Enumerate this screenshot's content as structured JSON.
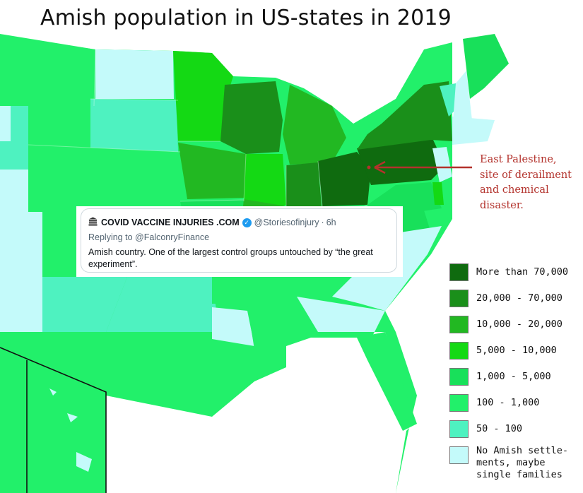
{
  "title": "Amish population in US-states in 2019",
  "annotation": {
    "lines": [
      "East Palestine,",
      "site of derailment",
      "and chemical",
      "disaster."
    ],
    "color": "#b3322c"
  },
  "tweet": {
    "account_name": "COVID VACCINE INJURIES .COM",
    "handle": "@Storiesofinjury",
    "age": "6h",
    "replying_prefix": "Replying to",
    "replying_to": "@FalconryFinance",
    "text": "Amish country. One of the largest control groups untouched by “the great experiment”.",
    "icons": [
      "building-icon",
      "verified-badge-icon"
    ]
  },
  "legend": [
    {
      "label": "More than 70,000",
      "color": "#0f6b0f"
    },
    {
      "label": "20,000 - 70,000",
      "color": "#1a8f1a"
    },
    {
      "label": "10,000 - 20,000",
      "color": "#22b822"
    },
    {
      "label": "5,000 - 10,000",
      "color": "#14d914"
    },
    {
      "label": "1,000 - 5,000",
      "color": "#18e05a"
    },
    {
      "label": "100 - 1,000",
      "color": "#22f06a"
    },
    {
      "label": "50 - 100",
      "color": "#4ef2c0"
    },
    {
      "label": "No Amish settle-\nments, maybe\nsingle families",
      "color": "#c4fafa"
    }
  ],
  "state_classes": {
    "Pennsylvania": "More than 70,000",
    "Ohio": "More than 70,000",
    "Indiana": "20,000 - 70,000",
    "Wisconsin": "20,000 - 70,000",
    "New York": "20,000 - 70,000",
    "Michigan": "10,000 - 20,000",
    "Iowa": "10,000 - 20,000",
    "Missouri": "10,000 - 20,000",
    "Kentucky": "10,000 - 20,000",
    "Minnesota": "5,000 - 10,000",
    "Illinois": "5,000 - 10,000",
    "Delaware": "5,000 - 10,000",
    "Maine": "1,000 - 5,000",
    "Kansas": "1,000 - 5,000",
    "Tennessee": "1,000 - 5,000",
    "Virginia": "1,000 - 5,000",
    "Maryland": "1,000 - 5,000",
    "Montana": "100 - 1,000",
    "Nebraska": "100 - 1,000",
    "Wyoming": "100 - 1,000",
    "Idaho": "100 - 1,000",
    "Colorado": "100 - 1,000",
    "Oklahoma": "100 - 1,000",
    "Texas": "100 - 1,000",
    "Mississippi": "100 - 1,000",
    "Alabama": "100 - 1,000",
    "Georgia": "100 - 1,000",
    "Florida": "100 - 1,000",
    "West Virginia": "100 - 1,000",
    "South Dakota": "50 - 100",
    "Arkansas": "50 - 100",
    "Vermont": "50 - 100",
    "North Dakota": "No Amish settle-\nments, maybe\nsingle families",
    "New Mexico": "No Amish settle-\nments, maybe\nsingle families",
    "Utah": "No Amish settle-\nments, maybe\nsingle families",
    "Louisiana": "No Amish settle-\nments, maybe\nsingle families",
    "South Carolina": "No Amish settle-\nments, maybe\nsingle families",
    "New Hampshire": "No Amish settle-\nments, maybe\nsingle families",
    "Massachusetts": "No Amish settle-\nments, maybe\nsingle families",
    "New Jersey": "No Amish settle-\nments, maybe\nsingle families",
    "Nevada": "No Amish settle-\nments, maybe\nsingle families",
    "Hawaii": "No Amish settle-\nments, maybe\nsingle families",
    "Alaska": "No Amish settle-\nments, maybe\nsingle families"
  }
}
